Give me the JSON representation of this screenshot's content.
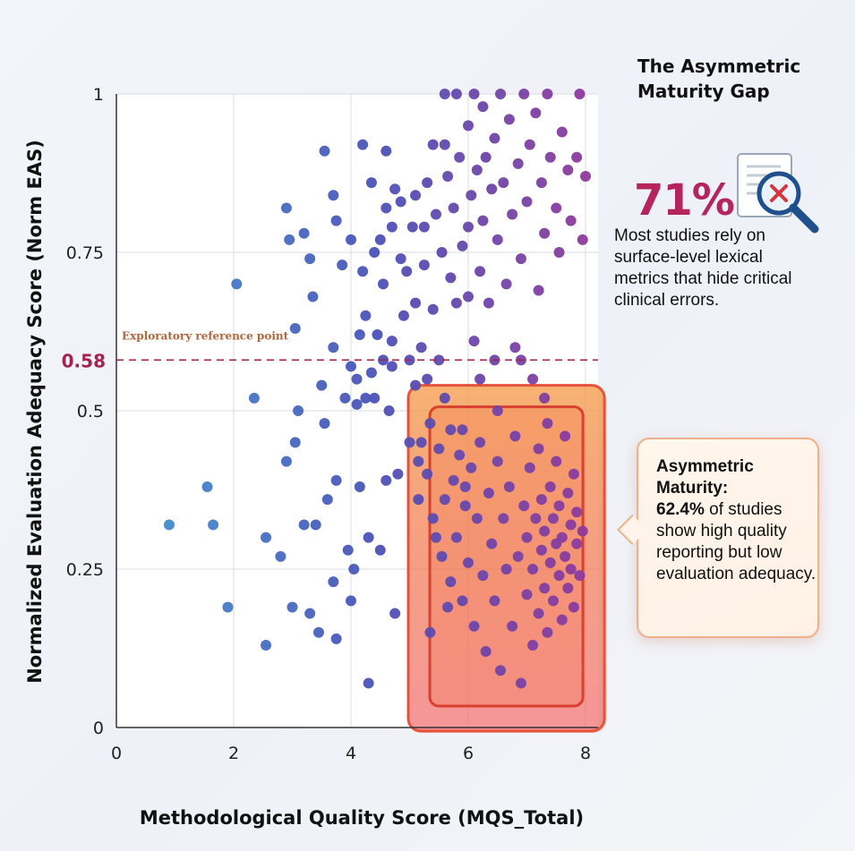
{
  "annotations": {
    "side_title": "The Asymmetric Maturity Gap",
    "stat_value": "71%",
    "stat_text": "Most studies rely on surface-level lexical metrics that hide critical clinical errors.",
    "callout_title": "Asymmetric Maturity:",
    "callout_value": "62.4%",
    "callout_text": "of studies show high quality reporting but low evaluation adequacy.",
    "icon": "magnifier-document-icon"
  },
  "chart_data": {
    "type": "scatter",
    "title": "",
    "xlabel": "Methodological Quality Score (MQS_Total)",
    "ylabel": "Normalized Evaluation Adequacy Score (Norm EAS)",
    "xlim": [
      0,
      8.2
    ],
    "ylim": [
      0,
      1
    ],
    "xticks": [
      0,
      2,
      4,
      6,
      8
    ],
    "yticks": [
      0,
      0.25,
      0.5,
      0.75,
      1
    ],
    "ytick_labels": [
      "0",
      "0.25",
      "0.5",
      "0.75",
      "1"
    ],
    "grid": true,
    "reference_line": {
      "y": 0.58,
      "label": "Exploratory reference point",
      "value_label": "0.58"
    },
    "highlight_region": {
      "x": [
        5.1,
        8.2
      ],
      "y": [
        0,
        0.54
      ]
    },
    "colors": {
      "low": "#3f98d2",
      "mid": "#4b52b8",
      "high": "#8e3a9c",
      "ref": "#a3244f",
      "highlight": "#f2723e"
    },
    "points": [
      [
        0.9,
        0.32
      ],
      [
        1.55,
        0.38
      ],
      [
        1.65,
        0.32
      ],
      [
        1.9,
        0.19
      ],
      [
        2.05,
        0.7
      ],
      [
        2.35,
        0.52
      ],
      [
        2.55,
        0.3
      ],
      [
        2.55,
        0.13
      ],
      [
        2.8,
        0.27
      ],
      [
        2.9,
        0.42
      ],
      [
        2.9,
        0.82
      ],
      [
        2.95,
        0.77
      ],
      [
        3.0,
        0.19
      ],
      [
        3.05,
        0.63
      ],
      [
        3.05,
        0.45
      ],
      [
        3.1,
        0.5
      ],
      [
        3.2,
        0.78
      ],
      [
        3.2,
        0.32
      ],
      [
        3.3,
        0.74
      ],
      [
        3.3,
        0.18
      ],
      [
        3.35,
        0.68
      ],
      [
        3.4,
        0.32
      ],
      [
        3.45,
        0.15
      ],
      [
        3.5,
        0.54
      ],
      [
        3.55,
        0.48
      ],
      [
        3.55,
        0.91
      ],
      [
        3.6,
        0.36
      ],
      [
        3.7,
        0.23
      ],
      [
        3.7,
        0.6
      ],
      [
        3.7,
        0.84
      ],
      [
        3.75,
        0.8
      ],
      [
        3.75,
        0.39
      ],
      [
        3.75,
        0.14
      ],
      [
        3.85,
        0.73
      ],
      [
        3.9,
        0.52
      ],
      [
        3.95,
        0.28
      ],
      [
        4.0,
        0.2
      ],
      [
        4.0,
        0.77
      ],
      [
        4.0,
        0.57
      ],
      [
        4.05,
        0.25
      ],
      [
        4.1,
        0.55
      ],
      [
        4.1,
        0.51
      ],
      [
        4.15,
        0.38
      ],
      [
        4.15,
        0.62
      ],
      [
        4.2,
        0.92
      ],
      [
        4.2,
        0.72
      ],
      [
        4.25,
        0.52
      ],
      [
        4.25,
        0.65
      ],
      [
        4.3,
        0.07
      ],
      [
        4.3,
        0.3
      ],
      [
        4.35,
        0.86
      ],
      [
        4.35,
        0.56
      ],
      [
        4.4,
        0.75
      ],
      [
        4.4,
        0.52
      ],
      [
        4.45,
        0.62
      ],
      [
        4.5,
        0.28
      ],
      [
        4.5,
        0.77
      ],
      [
        4.55,
        0.58
      ],
      [
        4.55,
        0.7
      ],
      [
        4.6,
        0.39
      ],
      [
        4.6,
        0.82
      ],
      [
        4.6,
        0.91
      ],
      [
        4.65,
        0.5
      ],
      [
        4.7,
        0.61
      ],
      [
        4.7,
        0.57
      ],
      [
        4.7,
        0.79
      ],
      [
        4.75,
        0.18
      ],
      [
        4.75,
        0.85
      ],
      [
        4.8,
        0.4
      ],
      [
        4.85,
        0.74
      ],
      [
        4.85,
        0.83
      ],
      [
        4.9,
        0.65
      ],
      [
        4.95,
        0.72
      ],
      [
        5.0,
        0.45
      ],
      [
        5.0,
        0.58
      ],
      [
        5.05,
        0.79
      ],
      [
        5.1,
        0.84
      ],
      [
        5.1,
        0.67
      ],
      [
        5.1,
        0.54
      ],
      [
        5.15,
        0.42
      ],
      [
        5.15,
        0.36
      ],
      [
        5.2,
        0.6
      ],
      [
        5.25,
        0.79
      ],
      [
        5.25,
        0.73
      ],
      [
        5.3,
        0.86
      ],
      [
        5.3,
        0.55
      ],
      [
        5.35,
        0.48
      ],
      [
        5.35,
        0.15
      ],
      [
        5.4,
        0.66
      ],
      [
        5.4,
        0.92
      ],
      [
        5.45,
        0.81
      ],
      [
        5.45,
        0.3
      ],
      [
        5.5,
        0.58
      ],
      [
        5.55,
        0.75
      ],
      [
        5.6,
        0.92
      ],
      [
        5.6,
        1.0
      ],
      [
        5.6,
        0.52
      ],
      [
        5.65,
        0.87
      ],
      [
        5.7,
        0.71
      ],
      [
        5.7,
        0.23
      ],
      [
        5.75,
        0.82
      ],
      [
        5.8,
        0.67
      ],
      [
        5.8,
        1.0
      ],
      [
        5.85,
        0.9
      ],
      [
        5.9,
        0.76
      ],
      [
        5.9,
        0.47
      ],
      [
        5.95,
        0.38
      ],
      [
        6.0,
        0.79
      ],
      [
        6.0,
        0.95
      ],
      [
        6.0,
        0.68
      ],
      [
        6.05,
        0.84
      ],
      [
        6.1,
        1.0
      ],
      [
        6.1,
        0.61
      ],
      [
        6.15,
        0.88
      ],
      [
        6.2,
        0.72
      ],
      [
        6.2,
        0.55
      ],
      [
        6.25,
        0.98
      ],
      [
        6.25,
        0.8
      ],
      [
        6.3,
        0.9
      ],
      [
        6.35,
        0.67
      ],
      [
        6.4,
        0.85
      ],
      [
        6.45,
        0.93
      ],
      [
        6.45,
        0.58
      ],
      [
        6.5,
        0.77
      ],
      [
        6.55,
        1.0
      ],
      [
        6.6,
        0.86
      ],
      [
        6.65,
        0.7
      ],
      [
        6.7,
        0.96
      ],
      [
        6.75,
        0.81
      ],
      [
        6.8,
        0.6
      ],
      [
        6.85,
        0.89
      ],
      [
        6.9,
        0.74
      ],
      [
        6.95,
        1.0
      ],
      [
        7.0,
        0.83
      ],
      [
        7.05,
        0.92
      ],
      [
        7.1,
        0.55
      ],
      [
        7.15,
        0.97
      ],
      [
        7.2,
        0.69
      ],
      [
        7.25,
        0.86
      ],
      [
        7.3,
        0.78
      ],
      [
        7.35,
        1.0
      ],
      [
        7.4,
        0.9
      ],
      [
        7.5,
        0.82
      ],
      [
        7.55,
        0.75
      ],
      [
        7.6,
        0.94
      ],
      [
        7.7,
        0.88
      ],
      [
        7.75,
        0.8
      ],
      [
        7.85,
        0.9
      ],
      [
        7.9,
        1.0
      ],
      [
        7.95,
        0.77
      ],
      [
        8.0,
        0.87
      ],
      [
        5.3,
        0.4
      ],
      [
        5.4,
        0.33
      ],
      [
        5.5,
        0.44
      ],
      [
        5.55,
        0.27
      ],
      [
        5.6,
        0.36
      ],
      [
        5.65,
        0.19
      ],
      [
        5.7,
        0.47
      ],
      [
        5.75,
        0.39
      ],
      [
        5.8,
        0.3
      ],
      [
        5.85,
        0.43
      ],
      [
        5.9,
        0.2
      ],
      [
        5.95,
        0.35
      ],
      [
        6.0,
        0.26
      ],
      [
        6.05,
        0.41
      ],
      [
        6.1,
        0.16
      ],
      [
        6.15,
        0.33
      ],
      [
        6.2,
        0.45
      ],
      [
        6.25,
        0.24
      ],
      [
        6.3,
        0.12
      ],
      [
        6.35,
        0.37
      ],
      [
        6.4,
        0.29
      ],
      [
        6.45,
        0.2
      ],
      [
        6.5,
        0.42
      ],
      [
        6.55,
        0.09
      ],
      [
        6.6,
        0.33
      ],
      [
        6.65,
        0.25
      ],
      [
        6.7,
        0.38
      ],
      [
        6.75,
        0.16
      ],
      [
        6.8,
        0.46
      ],
      [
        6.85,
        0.27
      ],
      [
        6.9,
        0.07
      ],
      [
        6.95,
        0.35
      ],
      [
        7.0,
        0.21
      ],
      [
        7.0,
        0.3
      ],
      [
        7.05,
        0.41
      ],
      [
        7.1,
        0.13
      ],
      [
        7.1,
        0.25
      ],
      [
        7.15,
        0.33
      ],
      [
        7.2,
        0.18
      ],
      [
        7.2,
        0.44
      ],
      [
        7.25,
        0.28
      ],
      [
        7.25,
        0.36
      ],
      [
        7.3,
        0.22
      ],
      [
        7.3,
        0.31
      ],
      [
        7.35,
        0.15
      ],
      [
        7.35,
        0.48
      ],
      [
        7.4,
        0.26
      ],
      [
        7.4,
        0.38
      ],
      [
        7.45,
        0.2
      ],
      [
        7.45,
        0.33
      ],
      [
        7.5,
        0.29
      ],
      [
        7.5,
        0.42
      ],
      [
        7.55,
        0.24
      ],
      [
        7.55,
        0.35
      ],
      [
        7.6,
        0.17
      ],
      [
        7.6,
        0.3
      ],
      [
        7.65,
        0.46
      ],
      [
        7.65,
        0.27
      ],
      [
        7.7,
        0.22
      ],
      [
        7.7,
        0.37
      ],
      [
        7.75,
        0.32
      ],
      [
        7.75,
        0.25
      ],
      [
        7.8,
        0.4
      ],
      [
        7.8,
        0.19
      ],
      [
        7.85,
        0.29
      ],
      [
        7.85,
        0.34
      ],
      [
        7.9,
        0.24
      ],
      [
        7.95,
        0.31
      ],
      [
        6.9,
        0.58
      ],
      [
        7.3,
        0.52
      ],
      [
        5.2,
        0.45
      ],
      [
        6.5,
        0.5
      ]
    ]
  }
}
